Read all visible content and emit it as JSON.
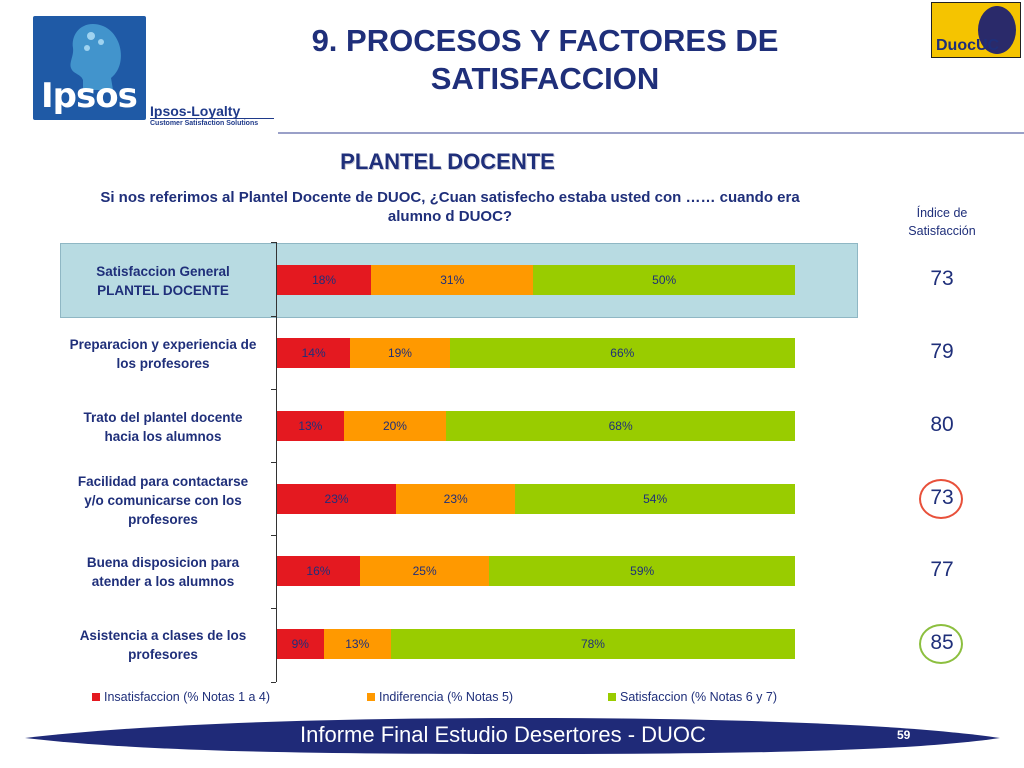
{
  "header": {
    "title_line1": "9. PROCESOS Y FACTORES DE",
    "title_line2": "SATISFACCION",
    "ipsos_word": "Ipsos",
    "ipsos_loyalty": "Ipsos-Loyalty",
    "ipsos_tagline": "Customer Satisfaction Solutions",
    "duoc_word": "DuocUC"
  },
  "subtitle": "PLANTEL DOCENTE",
  "question_line1": "Si nos referimos al Plantel Docente de DUOC, ¿Cuan satisfecho estaba usted con …… cuando era",
  "question_line2": "alumno d DUOC?",
  "index_header_line1": "Índice de",
  "index_header_line2": "Satisfacción",
  "colors": {
    "red": "#e41920",
    "orange": "#ff9900",
    "green": "#99cc00",
    "navy": "#1f2f7a"
  },
  "chart_data": {
    "type": "bar",
    "orientation": "horizontal-stacked-100",
    "categories": [
      [
        "Satisfaccion General",
        "PLANTEL DOCENTE"
      ],
      [
        "Preparacion y experiencia de",
        "los profesores"
      ],
      [
        "Trato del plantel docente",
        "hacia los alumnos"
      ],
      [
        "Facilidad para contactarse",
        "y/o comunicarse con los",
        "profesores"
      ],
      [
        "Buena disposicion para",
        "atender a los alumnos"
      ],
      [
        "Asistencia a clases de los",
        "profesores"
      ]
    ],
    "series": [
      {
        "name": "Insatisfaccion (% Notas 1 a 4)",
        "values": [
          18,
          14,
          13,
          23,
          16,
          9
        ],
        "labels": [
          "18%",
          "14%",
          "13%",
          "23%",
          "16%",
          "9%"
        ]
      },
      {
        "name": "Indiferencia (% Notas 5)",
        "values": [
          31,
          19,
          20,
          23,
          25,
          13
        ],
        "labels": [
          "31%",
          "19%",
          "20%",
          "23%",
          "25%",
          "13%"
        ]
      },
      {
        "name": "Satisfaccion (% Notas 6 y 7)",
        "values": [
          50,
          66,
          68,
          54,
          59,
          78
        ],
        "labels": [
          "50%",
          "66%",
          "68%",
          "54%",
          "59%",
          "78%"
        ]
      }
    ],
    "index": [
      "73",
      "79",
      "80",
      "73",
      "77",
      "85"
    ],
    "index_ring": [
      null,
      null,
      null,
      "red",
      null,
      "green"
    ],
    "highlighted_category": 0,
    "legend_position": "bottom"
  },
  "footer": {
    "text": "Informe Final Estudio Desertores - DUOC",
    "page": "59"
  }
}
